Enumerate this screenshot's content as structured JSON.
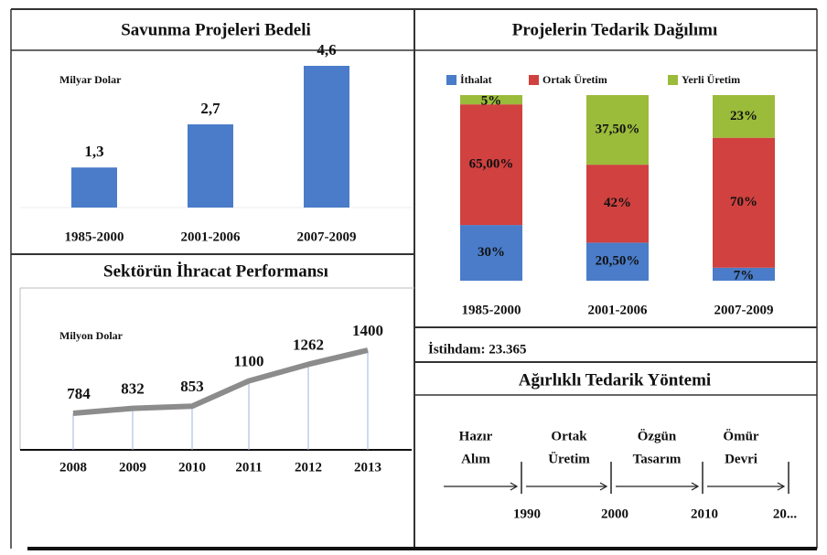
{
  "chart_data": [
    {
      "type": "bar",
      "title": "Savunma Projeleri Bedeli",
      "unit_label": "Milyar Dolar",
      "categories": [
        "1985-2000",
        "2001-2006",
        "2007-2009"
      ],
      "values": [
        1.3,
        2.7,
        4.6
      ],
      "value_labels": [
        "1,3",
        "2,7",
        "4,6"
      ],
      "color": "#4a7cc9"
    },
    {
      "type": "stacked_bar",
      "title": "Projelerin Tedarik Dağılımı",
      "legend": "top",
      "categories": [
        "1985-2000",
        "2001-2006",
        "2007-2009"
      ],
      "series": [
        {
          "name": "İthalat",
          "color": "#4a7cc9",
          "values": [
            30,
            20.5,
            7
          ],
          "value_labels": [
            "30%",
            "20,50%",
            "7%"
          ]
        },
        {
          "name": "Ortak Üretim",
          "color": "#d0413f",
          "values": [
            65,
            42,
            70
          ],
          "value_labels": [
            "65,00%",
            "42%",
            "70%"
          ]
        },
        {
          "name": "Yerli Üretim",
          "color": "#9bbb3b",
          "values": [
            5,
            37.5,
            23
          ],
          "value_labels": [
            "5%",
            "37,50%",
            "23%"
          ]
        }
      ]
    },
    {
      "type": "line",
      "title": "Sektörün İhracat Performansı",
      "unit_label": "Milyon Dolar",
      "categories": [
        "2008",
        "2009",
        "2010",
        "2011",
        "2012",
        "2013"
      ],
      "values": [
        784,
        832,
        853,
        1100,
        1262,
        1400
      ],
      "color": "#8c8c8c"
    }
  ],
  "employment": "İstihdam: 23.365",
  "procurement": {
    "title": "Ağırlıklı Tedarik Yöntemi",
    "stages": [
      [
        "Hazır",
        "Alım"
      ],
      [
        "Ortak",
        "Üretim"
      ],
      [
        "Özgün",
        "Tasarım"
      ],
      [
        "Ömür",
        "Devri"
      ]
    ],
    "years": [
      "1990",
      "2000",
      "2010",
      "20..."
    ]
  }
}
